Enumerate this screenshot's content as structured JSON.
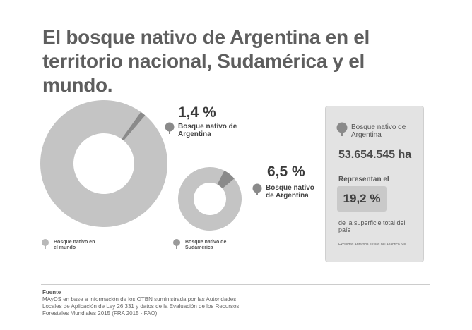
{
  "title": "El bosque nativo de Argentina en el territorio nacional, Sudamérica y el mundo.",
  "colors": {
    "ring_fill": "#c4c4c4",
    "slice_fill": "#8a8a8a",
    "text_dark": "#3a3a3a",
    "panel_bg": "#e3e3e3",
    "box_bg": "#c9c9c9"
  },
  "chart_data": [
    {
      "type": "pie",
      "title": "",
      "labels": [
        "Bosque nativo de Argentina",
        "Bosque nativo en el mundo"
      ],
      "values": [
        1.4,
        98.6
      ],
      "unit": "%"
    },
    {
      "type": "pie",
      "title": "",
      "labels": [
        "Bosque nativo de Argentina",
        "Bosque nativo de Sudamérica"
      ],
      "values": [
        6.5,
        93.5
      ],
      "unit": "%"
    }
  ],
  "labels": {
    "world_pct": "1,4 %",
    "world_arg_label": "Bosque nativo de Argentina",
    "world_label": "Bosque nativo en el mundo",
    "sa_pct": "6,5 %",
    "sa_arg_label": "Bosque nativo de Argentina",
    "sa_label": "Bosque nativo de Sudamérica"
  },
  "panel": {
    "label": "Bosque nativo de Argentina",
    "hectares": "53.654.545 ha",
    "represent": "Representan el",
    "percent": "19,2 %",
    "surface": "de la superficie total del país",
    "note": "Excluidas Antártida e Islas del Atlántico Sur"
  },
  "source": {
    "heading": "Fuente",
    "text": "MAyDS en base a información de los OTBN suministrada por las Autoridades Locales de Aplicación de Ley 26.331 y datos de la Evaluación de los Recursos Forestales Mundiales 2015 (FRA 2015 - FAO)."
  },
  "icons": {
    "tree": "tree-icon"
  }
}
